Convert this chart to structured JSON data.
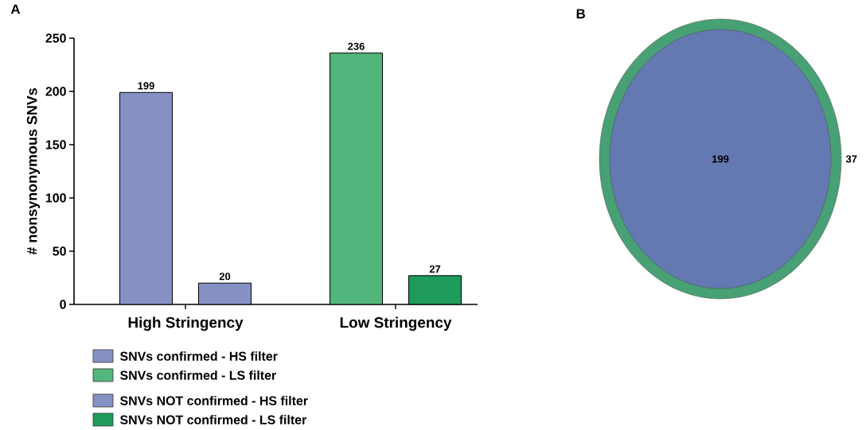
{
  "chart_data": [
    {
      "type": "bar",
      "title": "A",
      "ylabel": "# nonsynonymous SNVs",
      "categories": [
        "High Stringency",
        "Low Stringency"
      ],
      "series": [
        {
          "name": "SNVs confirmed - HS filter",
          "color": "#8591c3",
          "values": [
            199,
            null
          ]
        },
        {
          "name": "SNVs confirmed - LS filter",
          "color": "#52b57c",
          "values": [
            null,
            236
          ]
        },
        {
          "name": "SNVs NOT confirmed - HS filter",
          "color": "#8591c3",
          "values": [
            20,
            null
          ]
        },
        {
          "name": "SNVs NOT confirmed - LS filter",
          "color": "#1e9a5a",
          "values": [
            null,
            27
          ]
        }
      ],
      "ylim": [
        0,
        250
      ],
      "yticks": [
        0,
        50,
        100,
        150,
        200,
        250
      ],
      "data_labels": true,
      "legend": "bottom",
      "grid": false
    },
    {
      "type": "other",
      "title": "B",
      "categories": [
        null,
        null
      ],
      "values": [
        199,
        37
      ],
      "colors": [
        "#6478b2",
        "#48a075"
      ],
      "data_labels": true
    }
  ]
}
